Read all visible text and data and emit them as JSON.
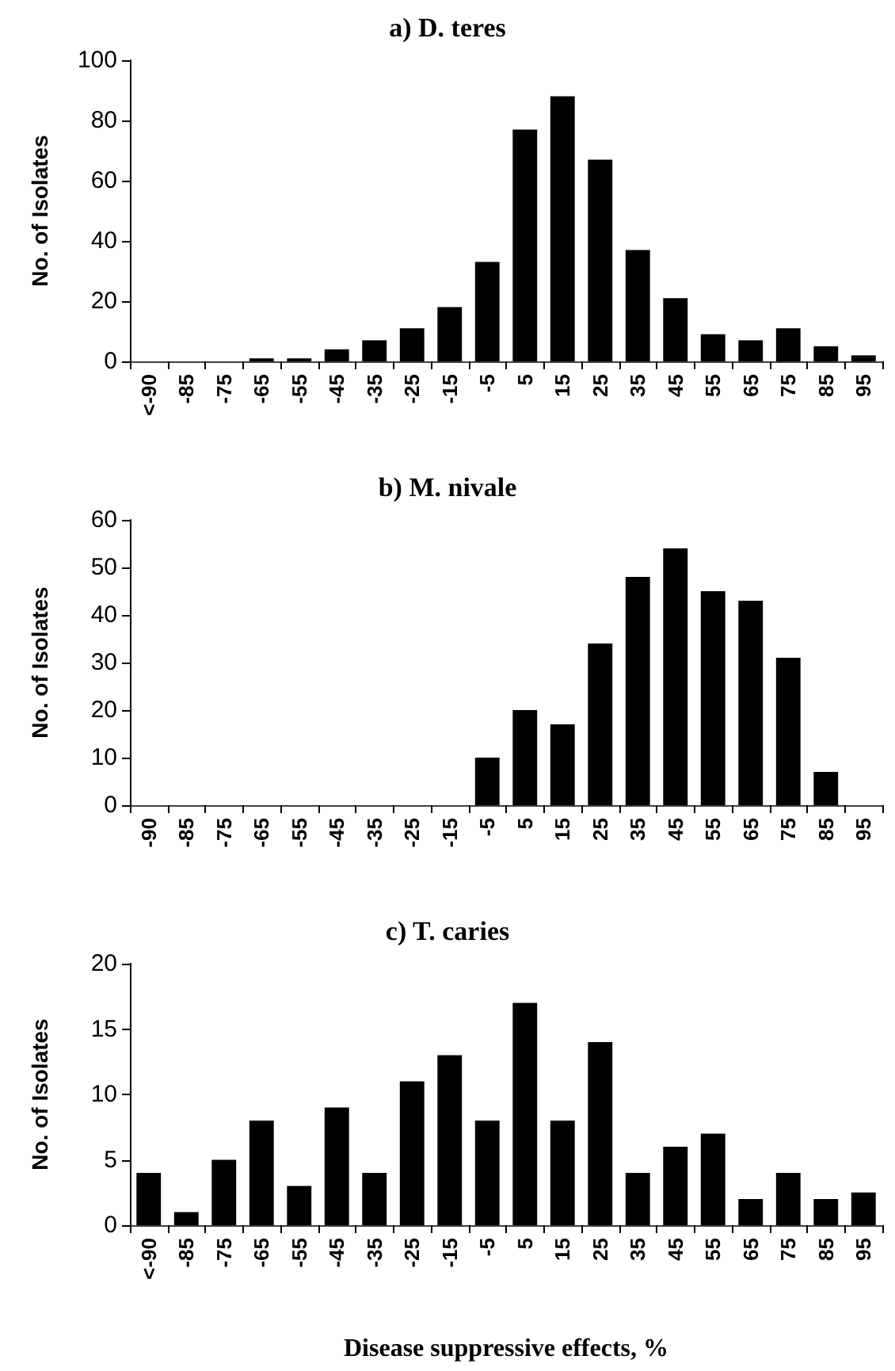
{
  "chart_data": [
    {
      "type": "bar",
      "title": "a) D. teres",
      "ylabel": "No. of Isolates",
      "categories": [
        "<-90",
        "-85",
        "-75",
        "-65",
        "-55",
        "-45",
        "-35",
        "-25",
        "-15",
        "-5",
        "5",
        "15",
        "25",
        "35",
        "45",
        "55",
        "65",
        "75",
        "85",
        "95"
      ],
      "values": [
        0,
        0,
        0,
        1,
        1,
        4,
        7,
        11,
        18,
        33,
        77,
        88,
        67,
        37,
        21,
        9,
        7,
        11,
        5,
        2
      ],
      "color": "#000000",
      "ylim": [
        0,
        100
      ],
      "yticks": [
        0,
        20,
        40,
        60,
        80,
        100
      ],
      "grid": false
    },
    {
      "type": "bar",
      "title": "b) M. nivale",
      "ylabel": "No. of Isolates",
      "categories": [
        "-90",
        "-85",
        "-75",
        "-65",
        "-55",
        "-45",
        "-35",
        "-25",
        "-15",
        "-5",
        "5",
        "15",
        "25",
        "35",
        "45",
        "55",
        "65",
        "75",
        "85",
        "95"
      ],
      "values": [
        0,
        0,
        0,
        0,
        0,
        0,
        0,
        0,
        0,
        10,
        20,
        17,
        34,
        48,
        54,
        45,
        43,
        31,
        7,
        0
      ],
      "color": "#000000",
      "ylim": [
        0,
        60
      ],
      "yticks": [
        0,
        10,
        20,
        30,
        40,
        50,
        60
      ],
      "grid": false
    },
    {
      "type": "bar",
      "title": "c) T. caries",
      "ylabel": "No. of Isolates",
      "xlabel": "Disease suppressive effects, %",
      "categories": [
        "<-90",
        "-85",
        "-75",
        "-65",
        "-55",
        "-45",
        "-35",
        "-25",
        "-15",
        "-5",
        "5",
        "15",
        "25",
        "35",
        "45",
        "55",
        "65",
        "75",
        "85",
        "95"
      ],
      "values": [
        4,
        1,
        5,
        8,
        3,
        9,
        4,
        11,
        13,
        8,
        17,
        8,
        14,
        4,
        6,
        7,
        2,
        4,
        2,
        2.5
      ],
      "color": "#000000",
      "ylim": [
        0,
        20
      ],
      "yticks": [
        0,
        5,
        10,
        15,
        20
      ],
      "grid": false
    }
  ]
}
